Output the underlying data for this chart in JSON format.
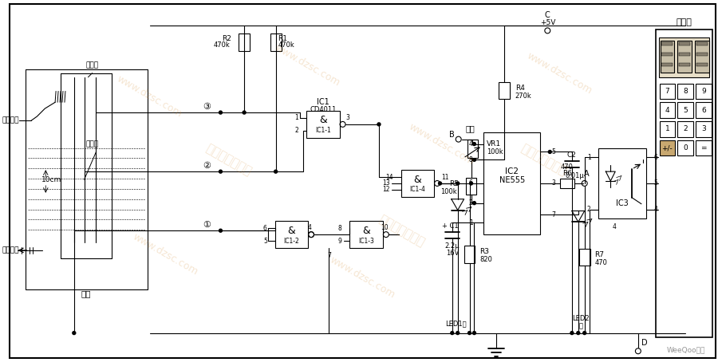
{
  "bg_color": "#ffffff",
  "fig_width": 9.0,
  "fig_height": 4.54,
  "dpi": 100,
  "wm_texts": [
    "www.dzsc.com",
    "www.dzsc.com",
    "www.dzsc.com",
    "www.dzsc.com",
    "www.dzsc.com"
  ],
  "wm_cn": [
    "维库电子市场网",
    "维库电子市场网",
    "维库电子市场网"
  ],
  "weequo": "WeeQoo维库"
}
